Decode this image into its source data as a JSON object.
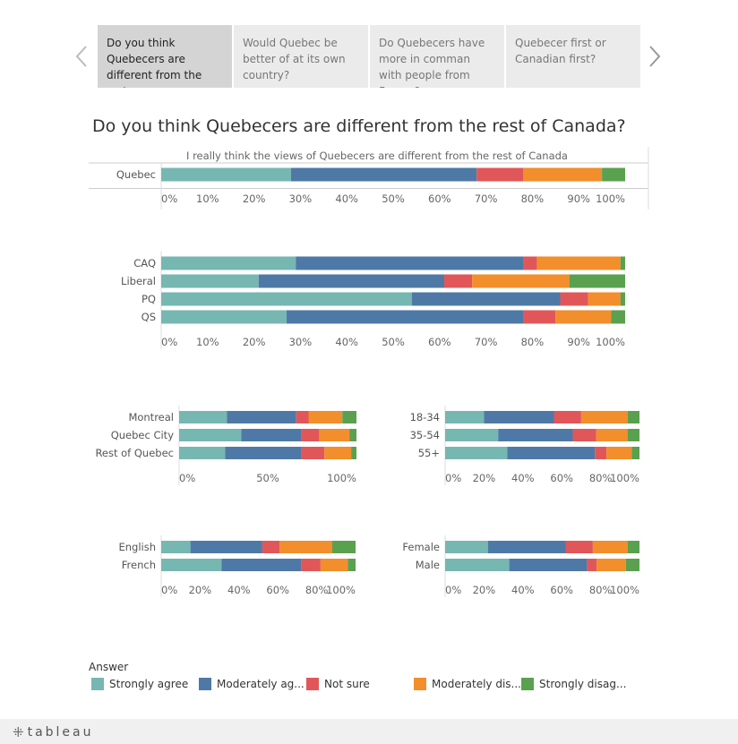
{
  "nav": {
    "tabs": [
      {
        "label": "Do you think Quebecers are different from the rest",
        "active": true
      },
      {
        "label": "Would Quebec be better of at its own country?",
        "active": false
      },
      {
        "label": "Do Quebecers have more in comman with people from France?",
        "active": false
      },
      {
        "label": "Quebecer first or Canadian first?",
        "active": false
      }
    ],
    "prev_icon": "chevron-left-icon",
    "next_icon": "chevron-right-icon"
  },
  "title": "Do you think Quebecers are different from the rest of Canada?",
  "colors": {
    "Strongly agree": "#76b7b2",
    "Moderately agree": "#4e79a7",
    "Not sure": "#e15759",
    "Moderately disagree": "#f28e2b",
    "Strongly disagree": "#59a14f"
  },
  "chart_data": [
    {
      "type": "bar",
      "stacked": "percent",
      "orientation": "horizontal",
      "header": "I really think the views of Quebecers are different from the rest of Canada",
      "categories": [
        "Quebec"
      ],
      "series": [
        {
          "name": "Strongly agree",
          "values": [
            28
          ]
        },
        {
          "name": "Moderately agree",
          "values": [
            40
          ]
        },
        {
          "name": "Not sure",
          "values": [
            10
          ]
        },
        {
          "name": "Moderately disagree",
          "values": [
            17
          ]
        },
        {
          "name": "Strongly disagree",
          "values": [
            5
          ]
        }
      ],
      "xlim": [
        0,
        100
      ],
      "xticks": [
        "0%",
        "10%",
        "20%",
        "30%",
        "40%",
        "50%",
        "60%",
        "70%",
        "80%",
        "90%",
        "100%"
      ]
    },
    {
      "type": "bar",
      "stacked": "percent",
      "orientation": "horizontal",
      "categories": [
        "CAQ",
        "Liberal",
        "PQ",
        "QS"
      ],
      "series": [
        {
          "name": "Strongly agree",
          "values": [
            29,
            21,
            54,
            27
          ]
        },
        {
          "name": "Moderately agree",
          "values": [
            49,
            40,
            32,
            51
          ]
        },
        {
          "name": "Not sure",
          "values": [
            3,
            6,
            6,
            7
          ]
        },
        {
          "name": "Moderately disagree",
          "values": [
            18,
            21,
            7,
            12
          ]
        },
        {
          "name": "Strongly disagree",
          "values": [
            1,
            12,
            1,
            3
          ]
        }
      ],
      "xlim": [
        0,
        100
      ],
      "xticks": [
        "0%",
        "10%",
        "20%",
        "30%",
        "40%",
        "50%",
        "60%",
        "70%",
        "80%",
        "90%",
        "100%"
      ]
    },
    {
      "type": "bar",
      "stacked": "percent",
      "orientation": "horizontal",
      "categories": [
        "Montreal",
        "Quebec City",
        "Rest of Quebec"
      ],
      "series": [
        {
          "name": "Strongly agree",
          "values": [
            27,
            35,
            26
          ]
        },
        {
          "name": "Moderately agree",
          "values": [
            39,
            34,
            43
          ]
        },
        {
          "name": "Not sure",
          "values": [
            7,
            10,
            13
          ]
        },
        {
          "name": "Moderately disagree",
          "values": [
            19,
            17,
            15
          ]
        },
        {
          "name": "Strongly disagree",
          "values": [
            8,
            4,
            3
          ]
        }
      ],
      "xlim": [
        0,
        100
      ],
      "xticks": [
        "0%",
        "50%",
        "100%"
      ]
    },
    {
      "type": "bar",
      "stacked": "percent",
      "orientation": "horizontal",
      "categories": [
        "18-34",
        "35-54",
        "55+"
      ],
      "series": [
        {
          "name": "Strongly agree",
          "values": [
            20,
            27,
            32
          ]
        },
        {
          "name": "Moderately agree",
          "values": [
            36,
            38,
            45
          ]
        },
        {
          "name": "Not sure",
          "values": [
            14,
            12,
            6
          ]
        },
        {
          "name": "Moderately disagree",
          "values": [
            24,
            16,
            13
          ]
        },
        {
          "name": "Strongly disagree",
          "values": [
            6,
            6,
            4
          ]
        }
      ],
      "xlim": [
        0,
        100
      ],
      "xticks": [
        "0%",
        "20%",
        "40%",
        "60%",
        "80%",
        "100%"
      ]
    },
    {
      "type": "bar",
      "stacked": "percent",
      "orientation": "horizontal",
      "categories": [
        "English",
        "French"
      ],
      "series": [
        {
          "name": "Strongly agree",
          "values": [
            15,
            31
          ]
        },
        {
          "name": "Moderately agree",
          "values": [
            37,
            41
          ]
        },
        {
          "name": "Not sure",
          "values": [
            9,
            10
          ]
        },
        {
          "name": "Moderately disagree",
          "values": [
            27,
            14
          ]
        },
        {
          "name": "Strongly disagree",
          "values": [
            12,
            4
          ]
        }
      ],
      "xlim": [
        0,
        100
      ],
      "xticks": [
        "0%",
        "20%",
        "40%",
        "60%",
        "80%",
        "100%"
      ]
    },
    {
      "type": "bar",
      "stacked": "percent",
      "orientation": "horizontal",
      "categories": [
        "Female",
        "Male"
      ],
      "series": [
        {
          "name": "Strongly agree",
          "values": [
            22,
            33
          ]
        },
        {
          "name": "Moderately agree",
          "values": [
            40,
            40
          ]
        },
        {
          "name": "Not sure",
          "values": [
            14,
            5
          ]
        },
        {
          "name": "Moderately disagree",
          "values": [
            18,
            15
          ]
        },
        {
          "name": "Strongly disagree",
          "values": [
            6,
            7
          ]
        }
      ],
      "xlim": [
        0,
        100
      ],
      "xticks": [
        "0%",
        "20%",
        "40%",
        "60%",
        "80%",
        "100%"
      ]
    }
  ],
  "legend": {
    "title": "Answer",
    "items": [
      "Strongly agree",
      "Moderately ag...",
      "Not sure",
      "Moderately dis...",
      "Strongly disag..."
    ],
    "series": [
      "Strongly agree",
      "Moderately agree",
      "Not sure",
      "Moderately disagree",
      "Strongly disagree"
    ]
  },
  "footer": {
    "logo_text": "tableau",
    "logo_icon": "tableau-logo-icon"
  }
}
